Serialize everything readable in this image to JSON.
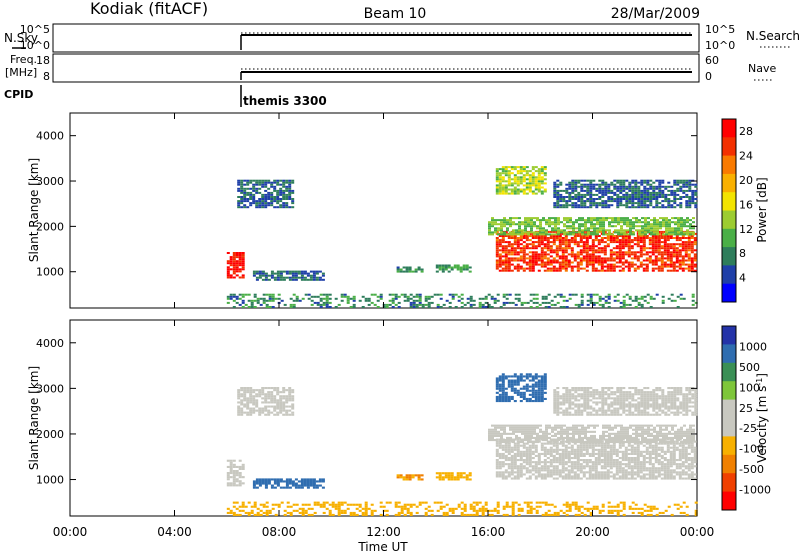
{
  "header": {
    "station": "Kodiak (fitACF)",
    "beam": "Beam 10",
    "date": "28/Mar/2009"
  },
  "summary_panel": {
    "left_label_top": "N.Sky",
    "left_ticks_top": [
      "10^5",
      "10^0"
    ],
    "right_ticks_top": [
      "10^5",
      "10^0"
    ],
    "right_label_top": "N.Search",
    "left_label_bottom_1": "Freq.",
    "left_label_bottom_2": "[MHz]",
    "left_ticks_bottom": [
      "18",
      "8"
    ],
    "right_ticks_bottom": [
      "60",
      "0"
    ],
    "right_label_bottom": "Nave",
    "cpid_label": "CPID",
    "cpid_value": "themis 3300"
  },
  "x_axis": {
    "label": "Time UT",
    "ticks": [
      "00:00",
      "04:00",
      "08:00",
      "12:00",
      "16:00",
      "20:00",
      "00:00"
    ]
  },
  "colors": {
    "power_scale": [
      "#0000ff",
      "#1f3fa8",
      "#2e7d5b",
      "#4aaf47",
      "#9ccc31",
      "#f3e400",
      "#f9b000",
      "#f97a00",
      "#f33000",
      "#ff0000"
    ],
    "velocity_scale": [
      "#2433a8",
      "#2f6db0",
      "#3a8f55",
      "#7ec63a",
      "#c8c8c0",
      "#c8c8c0",
      "#f7b000",
      "#f08000",
      "#f04000",
      "#ff0000"
    ]
  },
  "chart_data": [
    {
      "type": "heatmap",
      "title": "Power",
      "ylabel": "Slant Range [km]",
      "xlabel": "",
      "y_ticks": [
        "1000",
        "2000",
        "3000",
        "4000"
      ],
      "ylim": [
        200,
        4500
      ],
      "xlim_hours_ut": [
        0,
        24
      ],
      "colorbar_label": "Power [dB]",
      "colorbar_ticks": [
        "4",
        "8",
        "12",
        "16",
        "20",
        "24",
        "28"
      ],
      "colorbar_range": [
        0,
        30
      ],
      "regions": [
        {
          "t0": 6.0,
          "t1": 6.6,
          "r0": 850,
          "r1": 1400,
          "value": 28
        },
        {
          "t0": 6.4,
          "t1": 8.5,
          "r0": 2400,
          "r1": 3000,
          "value": 6
        },
        {
          "t0": 7.0,
          "t1": 9.7,
          "r0": 800,
          "r1": 1000,
          "value": 6
        },
        {
          "t0": 12.5,
          "t1": 13.5,
          "r0": 980,
          "r1": 1080,
          "value": 8
        },
        {
          "t0": 14.0,
          "t1": 15.3,
          "r0": 980,
          "r1": 1150,
          "value": 9
        },
        {
          "t0": 16.3,
          "t1": 23.9,
          "r0": 1000,
          "r1": 1900,
          "value": 26
        },
        {
          "t0": 16.0,
          "t1": 23.9,
          "r0": 1800,
          "r1": 2200,
          "value": 12
        },
        {
          "t0": 16.3,
          "t1": 18.2,
          "r0": 2700,
          "r1": 3300,
          "value": 14
        },
        {
          "t0": 18.5,
          "t1": 23.9,
          "r0": 2400,
          "r1": 3000,
          "value": 6
        },
        {
          "t0": 6.0,
          "t1": 24.0,
          "r0": 200,
          "r1": 500,
          "value": 8
        }
      ]
    },
    {
      "type": "heatmap",
      "title": "Velocity",
      "ylabel": "Slant Range [km]",
      "xlabel": "Time UT",
      "y_ticks": [
        "1000",
        "2000",
        "3000",
        "4000"
      ],
      "ylim": [
        200,
        4500
      ],
      "xlim_hours_ut": [
        0,
        24
      ],
      "colorbar_label": "Velocity [m s^-1]",
      "colorbar_ticks": [
        "1000",
        "500",
        "100",
        "25",
        "-25",
        "-100",
        "-500",
        "-1000"
      ],
      "regions": [
        {
          "t0": 6.0,
          "t1": 6.6,
          "r0": 850,
          "r1": 1400,
          "value": 0
        },
        {
          "t0": 6.4,
          "t1": 8.5,
          "r0": 2400,
          "r1": 3000,
          "value": 0
        },
        {
          "t0": 7.0,
          "t1": 9.7,
          "r0": 800,
          "r1": 1000,
          "value": 120
        },
        {
          "t0": 12.5,
          "t1": 13.5,
          "r0": 980,
          "r1": 1080,
          "value": -100
        },
        {
          "t0": 14.0,
          "t1": 15.3,
          "r0": 980,
          "r1": 1150,
          "value": -60
        },
        {
          "t0": 16.3,
          "t1": 23.9,
          "r0": 1000,
          "r1": 1900,
          "value": 0
        },
        {
          "t0": 16.0,
          "t1": 23.9,
          "r0": 1800,
          "r1": 2200,
          "value": 0
        },
        {
          "t0": 16.3,
          "t1": 18.2,
          "r0": 2700,
          "r1": 3300,
          "value": 150
        },
        {
          "t0": 18.5,
          "t1": 23.9,
          "r0": 2400,
          "r1": 3000,
          "value": 0
        },
        {
          "t0": 6.0,
          "t1": 24.0,
          "r0": 200,
          "r1": 500,
          "value": -50
        }
      ]
    }
  ]
}
